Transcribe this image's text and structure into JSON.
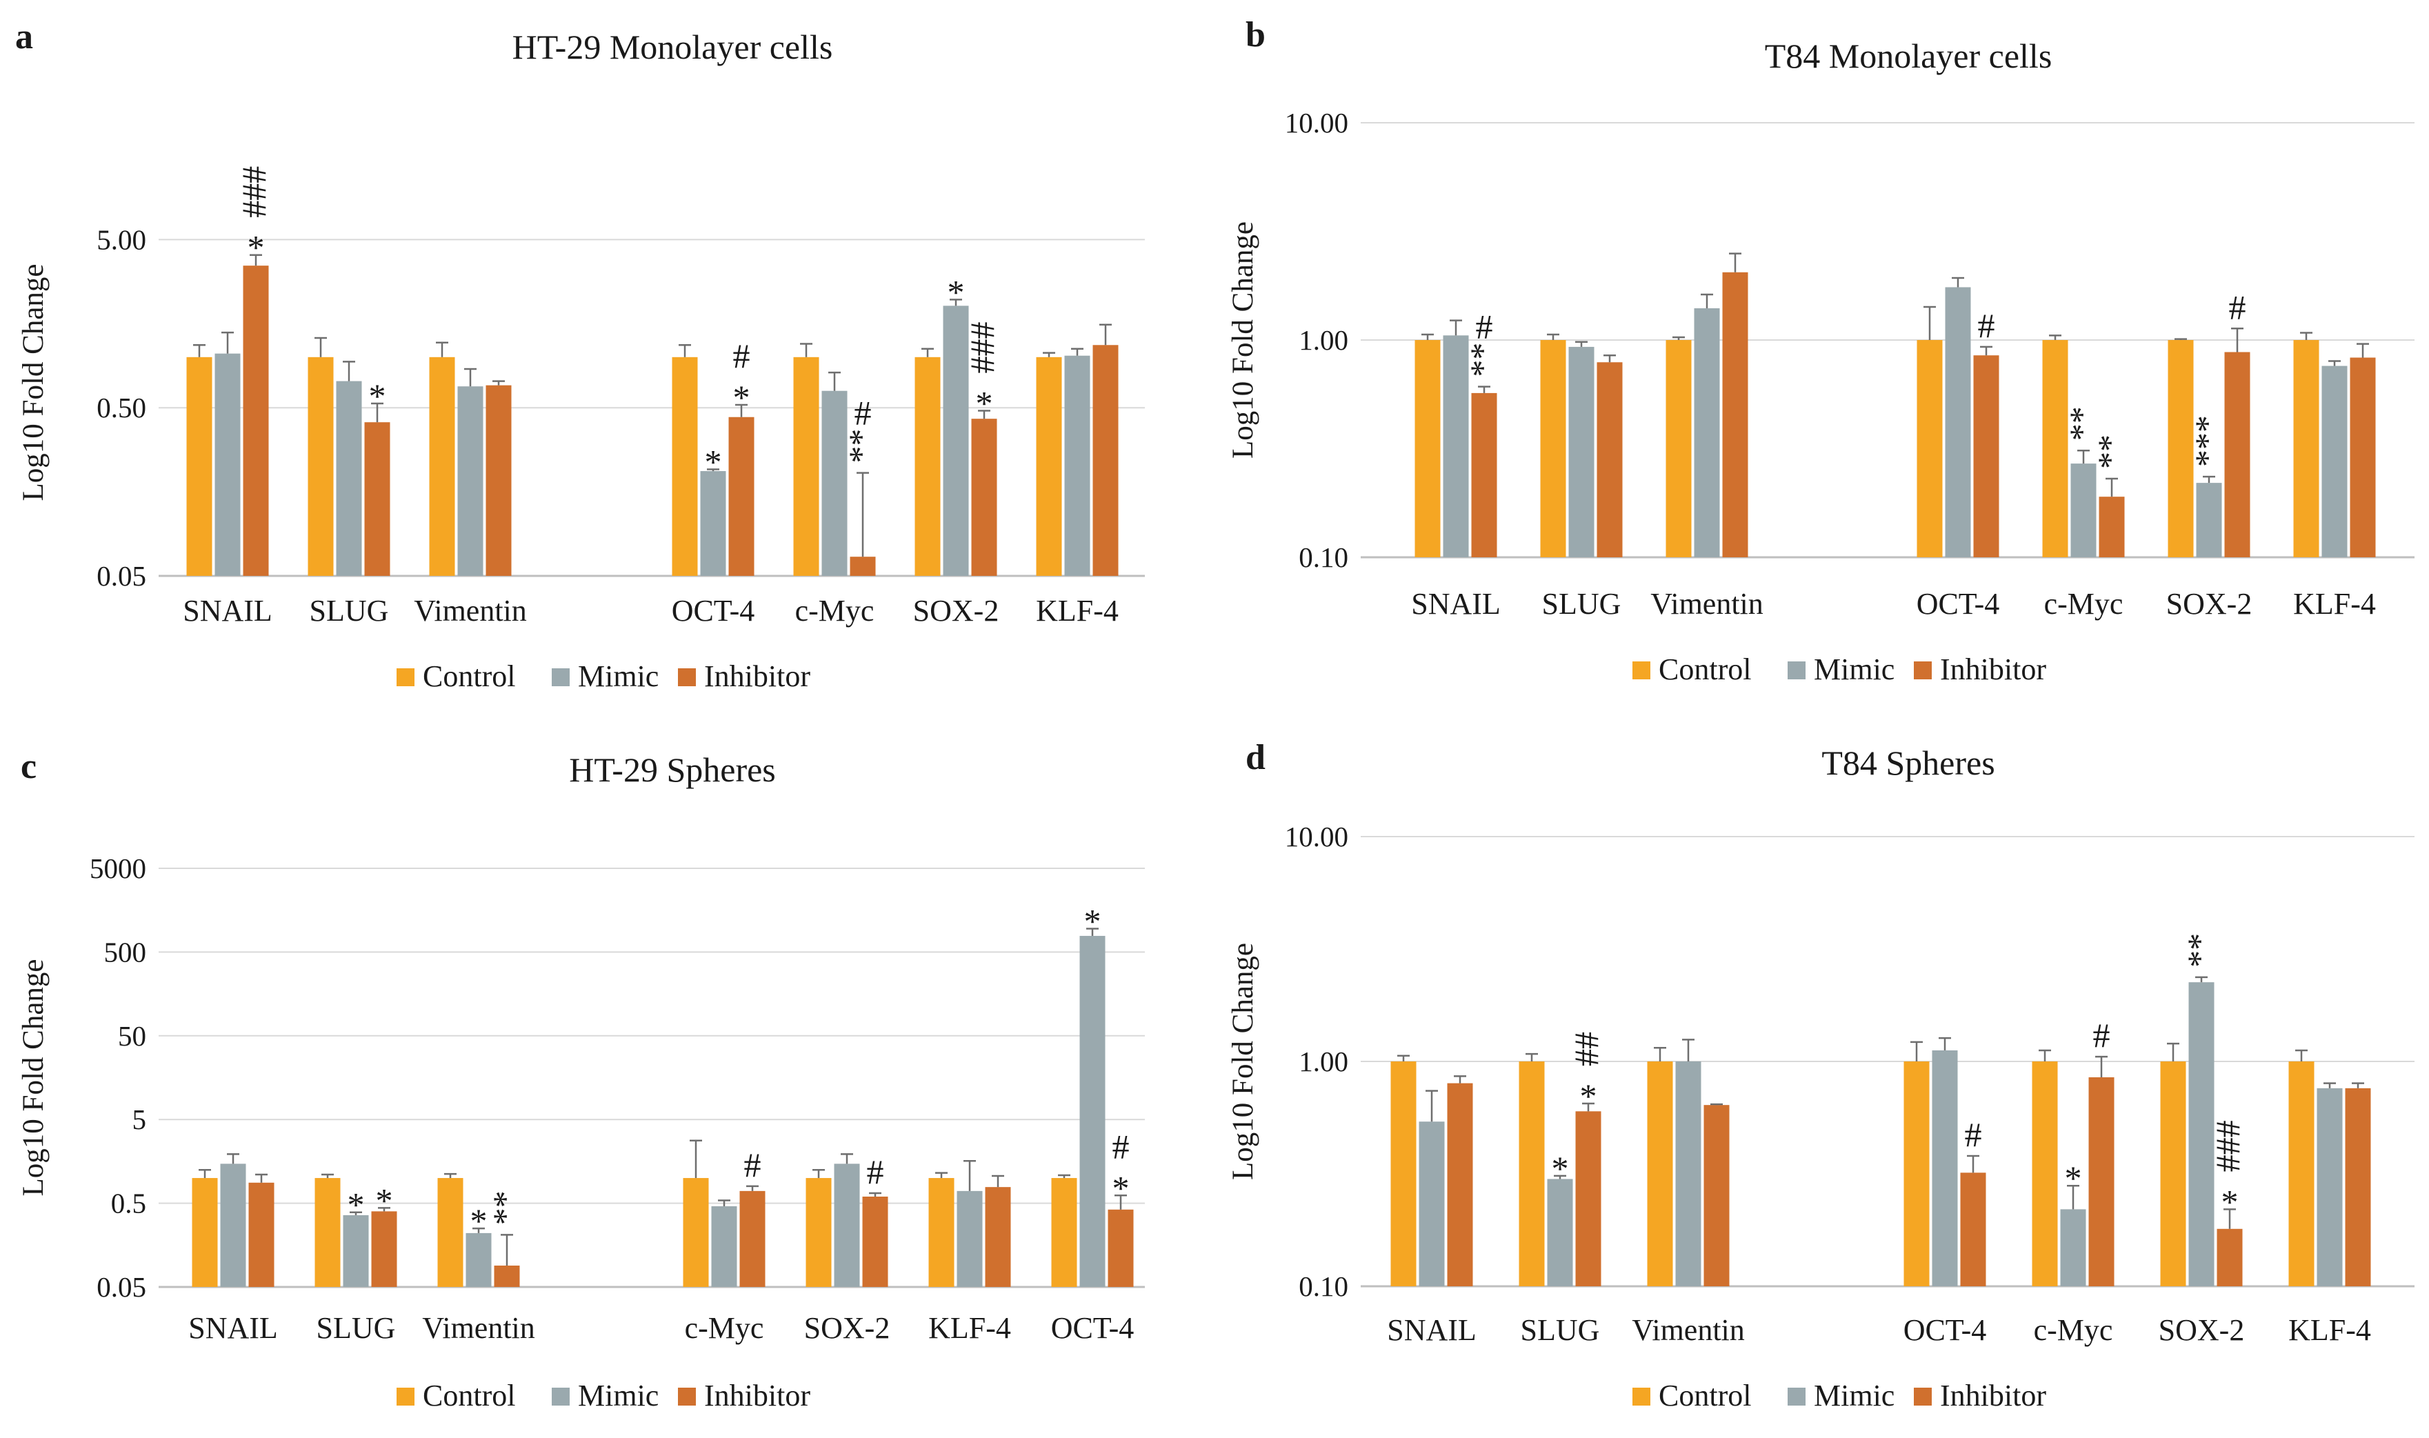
{
  "colors": {
    "Control": "#F5A623",
    "Mimic": "#9AA9AE",
    "Inhibitor": "#D0702E"
  },
  "chart_data": [
    {
      "id": "a",
      "letter": "a",
      "type": "bar",
      "scale": "log",
      "title": "HT-29 Monolayer cells",
      "ylabel": "Log10 Fold Change",
      "ylim": [
        0.05,
        10
      ],
      "ticks": [
        {
          "v": 0.05,
          "label": "0.05"
        },
        {
          "v": 0.5,
          "label": "0.50"
        },
        {
          "v": 5,
          "label": "5.00"
        }
      ],
      "legend": [
        "Control",
        "Mimic",
        "Inhibitor"
      ],
      "series": [
        "Control",
        "Mimic",
        "Inhibitor"
      ],
      "categories": [
        {
          "label": "SNAIL",
          "pos": 0,
          "values": [
            1.0,
            1.05,
            3.5
          ],
          "errors": [
            0.18,
            0.35,
            0.55
          ],
          "marks": [
            [],
            [],
            [
              "*",
              "###"
            ]
          ]
        },
        {
          "label": "SLUG",
          "pos": 1,
          "values": [
            1.0,
            0.72,
            0.41
          ],
          "errors": [
            0.3,
            0.22,
            0.12
          ],
          "marks": [
            [],
            [],
            [
              "*"
            ]
          ]
        },
        {
          "label": "Vimentin",
          "pos": 2,
          "values": [
            1.0,
            0.67,
            0.68
          ],
          "errors": [
            0.22,
            0.18,
            0.04
          ],
          "marks": [
            [],
            [],
            []
          ]
        },
        {
          "label": "OCT-4",
          "pos": 4,
          "values": [
            1.0,
            0.21,
            0.44
          ],
          "errors": [
            0.18,
            0.005,
            0.08
          ],
          "marks": [
            [],
            [
              "*"
            ],
            [
              "*",
              "#"
            ]
          ]
        },
        {
          "label": "c-Myc",
          "pos": 5,
          "values": [
            1.0,
            0.63,
            0.065
          ],
          "errors": [
            0.2,
            0.18,
            0.14
          ],
          "marks": [
            [],
            [],
            [
              "**",
              "#"
            ]
          ]
        },
        {
          "label": "SOX-2",
          "pos": 6,
          "values": [
            1.0,
            2.02,
            0.43
          ],
          "errors": [
            0.12,
            0.18,
            0.05
          ],
          "marks": [
            [],
            [
              "*"
            ],
            [
              "*",
              "###"
            ]
          ]
        },
        {
          "label": "KLF-4",
          "pos": 7,
          "values": [
            1.0,
            1.02,
            1.18
          ],
          "errors": [
            0.06,
            0.1,
            0.38
          ],
          "marks": [
            [],
            [],
            []
          ]
        }
      ]
    },
    {
      "id": "b",
      "letter": "b",
      "type": "bar",
      "scale": "log",
      "title": "T84 Monolayer cells",
      "ylabel": "Log10 Fold Change",
      "ylim": [
        0.1,
        10
      ],
      "ticks": [
        {
          "v": 0.1,
          "label": "0.10"
        },
        {
          "v": 1,
          "label": "1.00"
        },
        {
          "v": 10,
          "label": "10.00"
        }
      ],
      "legend": [
        "Control",
        "Mimic",
        "Inhibitor"
      ],
      "series": [
        "Control",
        "Mimic",
        "Inhibitor"
      ],
      "categories": [
        {
          "label": "SNAIL",
          "pos": 0,
          "values": [
            1.0,
            1.05,
            0.57
          ],
          "errors": [
            0.06,
            0.18,
            0.04
          ],
          "marks": [
            [],
            [],
            [
              "**",
              "#"
            ]
          ]
        },
        {
          "label": "SLUG",
          "pos": 1,
          "values": [
            1.0,
            0.93,
            0.79
          ],
          "errors": [
            0.06,
            0.05,
            0.06
          ],
          "marks": [
            [],
            [],
            []
          ]
        },
        {
          "label": "Vimentin",
          "pos": 2,
          "values": [
            1.0,
            1.4,
            2.05
          ],
          "errors": [
            0.03,
            0.22,
            0.45
          ],
          "marks": [
            [],
            [],
            []
          ]
        },
        {
          "label": "OCT-4",
          "pos": 4,
          "values": [
            1.0,
            1.75,
            0.85
          ],
          "errors": [
            0.42,
            0.18,
            0.08
          ],
          "marks": [
            [],
            [],
            [
              "#"
            ]
          ]
        },
        {
          "label": "c-Myc",
          "pos": 5,
          "values": [
            1.0,
            0.27,
            0.19
          ],
          "errors": [
            0.05,
            0.04,
            0.04
          ],
          "marks": [
            [],
            [
              "**"
            ],
            [
              "**"
            ]
          ]
        },
        {
          "label": "SOX-2",
          "pos": 6,
          "values": [
            1.0,
            0.22,
            0.88
          ],
          "errors": [
            0.01,
            0.015,
            0.25
          ],
          "marks": [
            [],
            [
              "***"
            ],
            [
              "#"
            ]
          ]
        },
        {
          "label": "KLF-4",
          "pos": 7,
          "values": [
            1.0,
            0.76,
            0.83
          ],
          "errors": [
            0.08,
            0.04,
            0.13
          ],
          "marks": [
            [],
            [],
            []
          ]
        }
      ]
    },
    {
      "id": "c",
      "letter": "c",
      "type": "bar",
      "scale": "log",
      "title": "HT-29 Spheres",
      "ylabel": "Log10 Fold Change",
      "ylim": [
        0.05,
        5000
      ],
      "ticks": [
        {
          "v": 0.05,
          "label": "0.05"
        },
        {
          "v": 0.5,
          "label": "0.5"
        },
        {
          "v": 5,
          "label": "5"
        },
        {
          "v": 50,
          "label": "50"
        },
        {
          "v": 500,
          "label": "500"
        },
        {
          "v": 5000,
          "label": "5000"
        }
      ],
      "legend": [
        "Control",
        "Mimic",
        "Inhibitor"
      ],
      "series": [
        "Control",
        "Mimic",
        "Inhibitor"
      ],
      "categories": [
        {
          "label": "SNAIL",
          "pos": 0,
          "values": [
            1.0,
            1.48,
            0.88
          ],
          "errors": [
            0.25,
            0.45,
            0.22
          ],
          "marks": [
            [],
            [],
            []
          ]
        },
        {
          "label": "SLUG",
          "pos": 1,
          "values": [
            1.0,
            0.36,
            0.4
          ],
          "errors": [
            0.1,
            0.03,
            0.04
          ],
          "marks": [
            [],
            [
              "*"
            ],
            [
              "*"
            ]
          ]
        },
        {
          "label": "Vimentin",
          "pos": 2,
          "values": [
            1.0,
            0.22,
            0.09
          ],
          "errors": [
            0.12,
            0.03,
            0.12
          ],
          "marks": [
            [],
            [
              "*"
            ],
            [
              "**"
            ]
          ]
        },
        {
          "label": "c-Myc",
          "pos": 4,
          "values": [
            1.0,
            0.46,
            0.7
          ],
          "errors": [
            1.8,
            0.08,
            0.1
          ],
          "marks": [
            [],
            [],
            [
              "#"
            ]
          ]
        },
        {
          "label": "SOX-2",
          "pos": 5,
          "values": [
            1.0,
            1.48,
            0.6
          ],
          "errors": [
            0.25,
            0.45,
            0.06
          ],
          "marks": [
            [],
            [],
            [
              "#"
            ]
          ]
        },
        {
          "label": "KLF-4",
          "pos": 6,
          "values": [
            1.0,
            0.7,
            0.78
          ],
          "errors": [
            0.15,
            0.9,
            0.28
          ],
          "marks": [
            [],
            [],
            []
          ]
        },
        {
          "label": "OCT-4",
          "pos": 7,
          "values": [
            1.0,
            780,
            0.42
          ],
          "errors": [
            0.08,
            170,
            0.2
          ],
          "marks": [
            [],
            [
              "*"
            ],
            [
              "*",
              "#"
            ]
          ]
        }
      ]
    },
    {
      "id": "d",
      "letter": "d",
      "type": "bar",
      "scale": "log",
      "title": "T84 Spheres",
      "ylabel": "Log10 Fold Change",
      "ylim": [
        0.1,
        10
      ],
      "ticks": [
        {
          "v": 0.1,
          "label": "0.10"
        },
        {
          "v": 1,
          "label": "1.00"
        },
        {
          "v": 10,
          "label": "10.00"
        }
      ],
      "legend": [
        "Control",
        "Mimic",
        "Inhibitor"
      ],
      "series": [
        "Control",
        "Mimic",
        "Inhibitor"
      ],
      "categories": [
        {
          "label": "SNAIL",
          "pos": 0,
          "values": [
            1.0,
            0.54,
            0.8
          ],
          "errors": [
            0.06,
            0.2,
            0.06
          ],
          "marks": [
            [],
            [],
            []
          ]
        },
        {
          "label": "SLUG",
          "pos": 1,
          "values": [
            1.0,
            0.3,
            0.6
          ],
          "errors": [
            0.08,
            0.01,
            0.05
          ],
          "marks": [
            [],
            [
              "*"
            ],
            [
              "*",
              "##"
            ]
          ]
        },
        {
          "label": "Vimentin",
          "pos": 2,
          "values": [
            1.0,
            1.0,
            0.64
          ],
          "errors": [
            0.15,
            0.25,
            0.005
          ],
          "marks": [
            [],
            [],
            []
          ]
        },
        {
          "label": "OCT-4",
          "pos": 4,
          "values": [
            1.0,
            1.12,
            0.32
          ],
          "errors": [
            0.22,
            0.15,
            0.06
          ],
          "marks": [
            [],
            [],
            [
              "#"
            ]
          ]
        },
        {
          "label": "c-Myc",
          "pos": 5,
          "values": [
            1.0,
            0.22,
            0.85
          ],
          "errors": [
            0.12,
            0.06,
            0.2
          ],
          "marks": [
            [],
            [
              "*"
            ],
            [
              "#"
            ]
          ]
        },
        {
          "label": "SOX-2",
          "pos": 6,
          "values": [
            1.0,
            2.25,
            0.18
          ],
          "errors": [
            0.2,
            0.12,
            0.04
          ],
          "marks": [
            [],
            [
              "**"
            ],
            [
              "*",
              "###"
            ]
          ]
        },
        {
          "label": "KLF-4",
          "pos": 7,
          "values": [
            1.0,
            0.76,
            0.76
          ],
          "errors": [
            0.12,
            0.04,
            0.04
          ],
          "marks": [
            [],
            [],
            []
          ]
        }
      ]
    }
  ]
}
